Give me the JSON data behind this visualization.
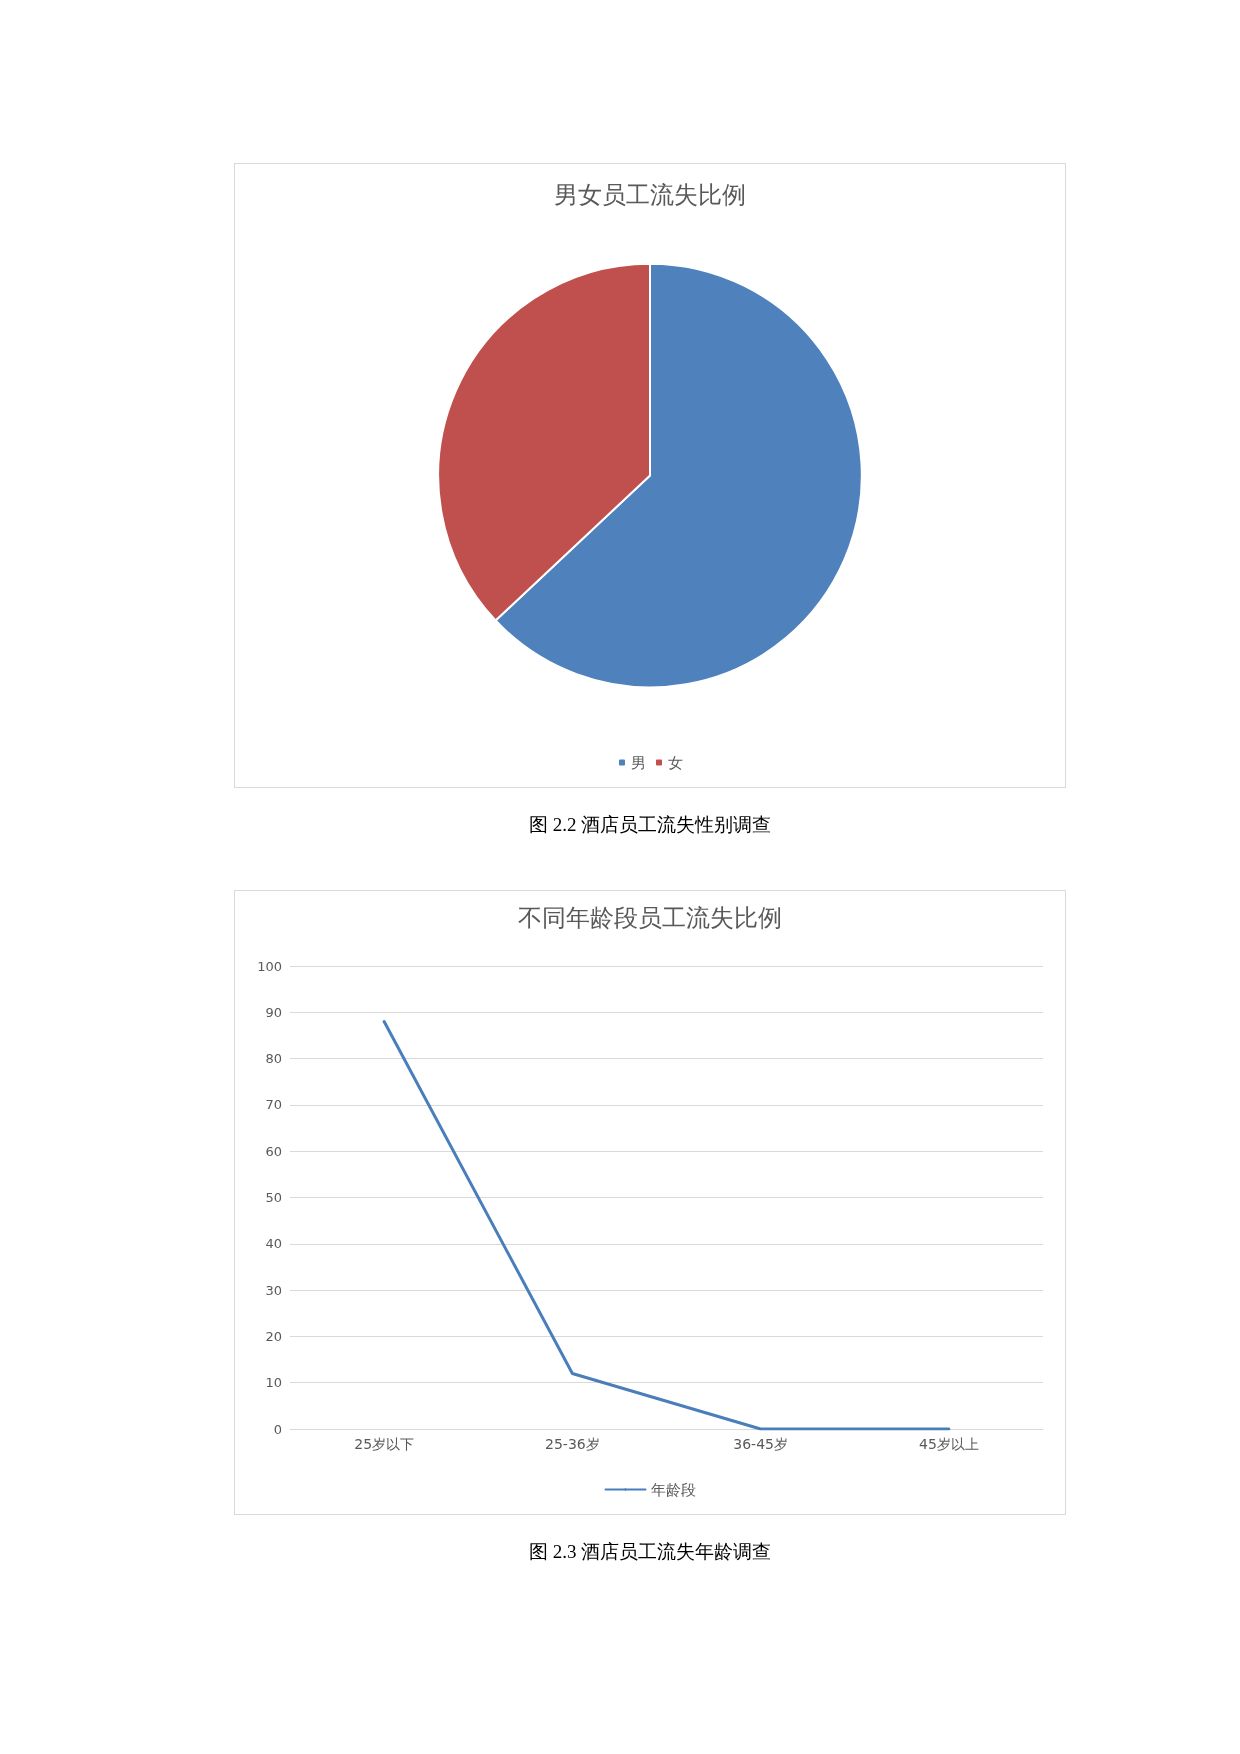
{
  "chart_data": [
    {
      "type": "pie",
      "title": "男女员工流失比例",
      "categories": [
        "男",
        "女"
      ],
      "values": [
        63,
        37
      ],
      "colors": [
        "#4f81bd",
        "#c0504d"
      ],
      "legend": "bottom",
      "annotations": [
        "图 2.2 酒店员工流失性别调查"
      ]
    },
    {
      "type": "line",
      "title": "不同年龄段员工流失比例",
      "categories": [
        "25岁以下",
        "25-36岁",
        "36-45岁",
        "45岁以上"
      ],
      "series": [
        {
          "name": "年龄段",
          "color": "#4a7ebb",
          "values": [
            88,
            12,
            0,
            0
          ]
        }
      ],
      "ylim": [
        0,
        100
      ],
      "yticks": [
        0,
        10,
        20,
        30,
        40,
        50,
        60,
        70,
        80,
        90,
        100
      ],
      "grid": "y",
      "legend": "bottom",
      "marker": "none",
      "line_style": "solid",
      "annotations": [
        "图 2.3 酒店员工流失年龄调查"
      ]
    }
  ]
}
